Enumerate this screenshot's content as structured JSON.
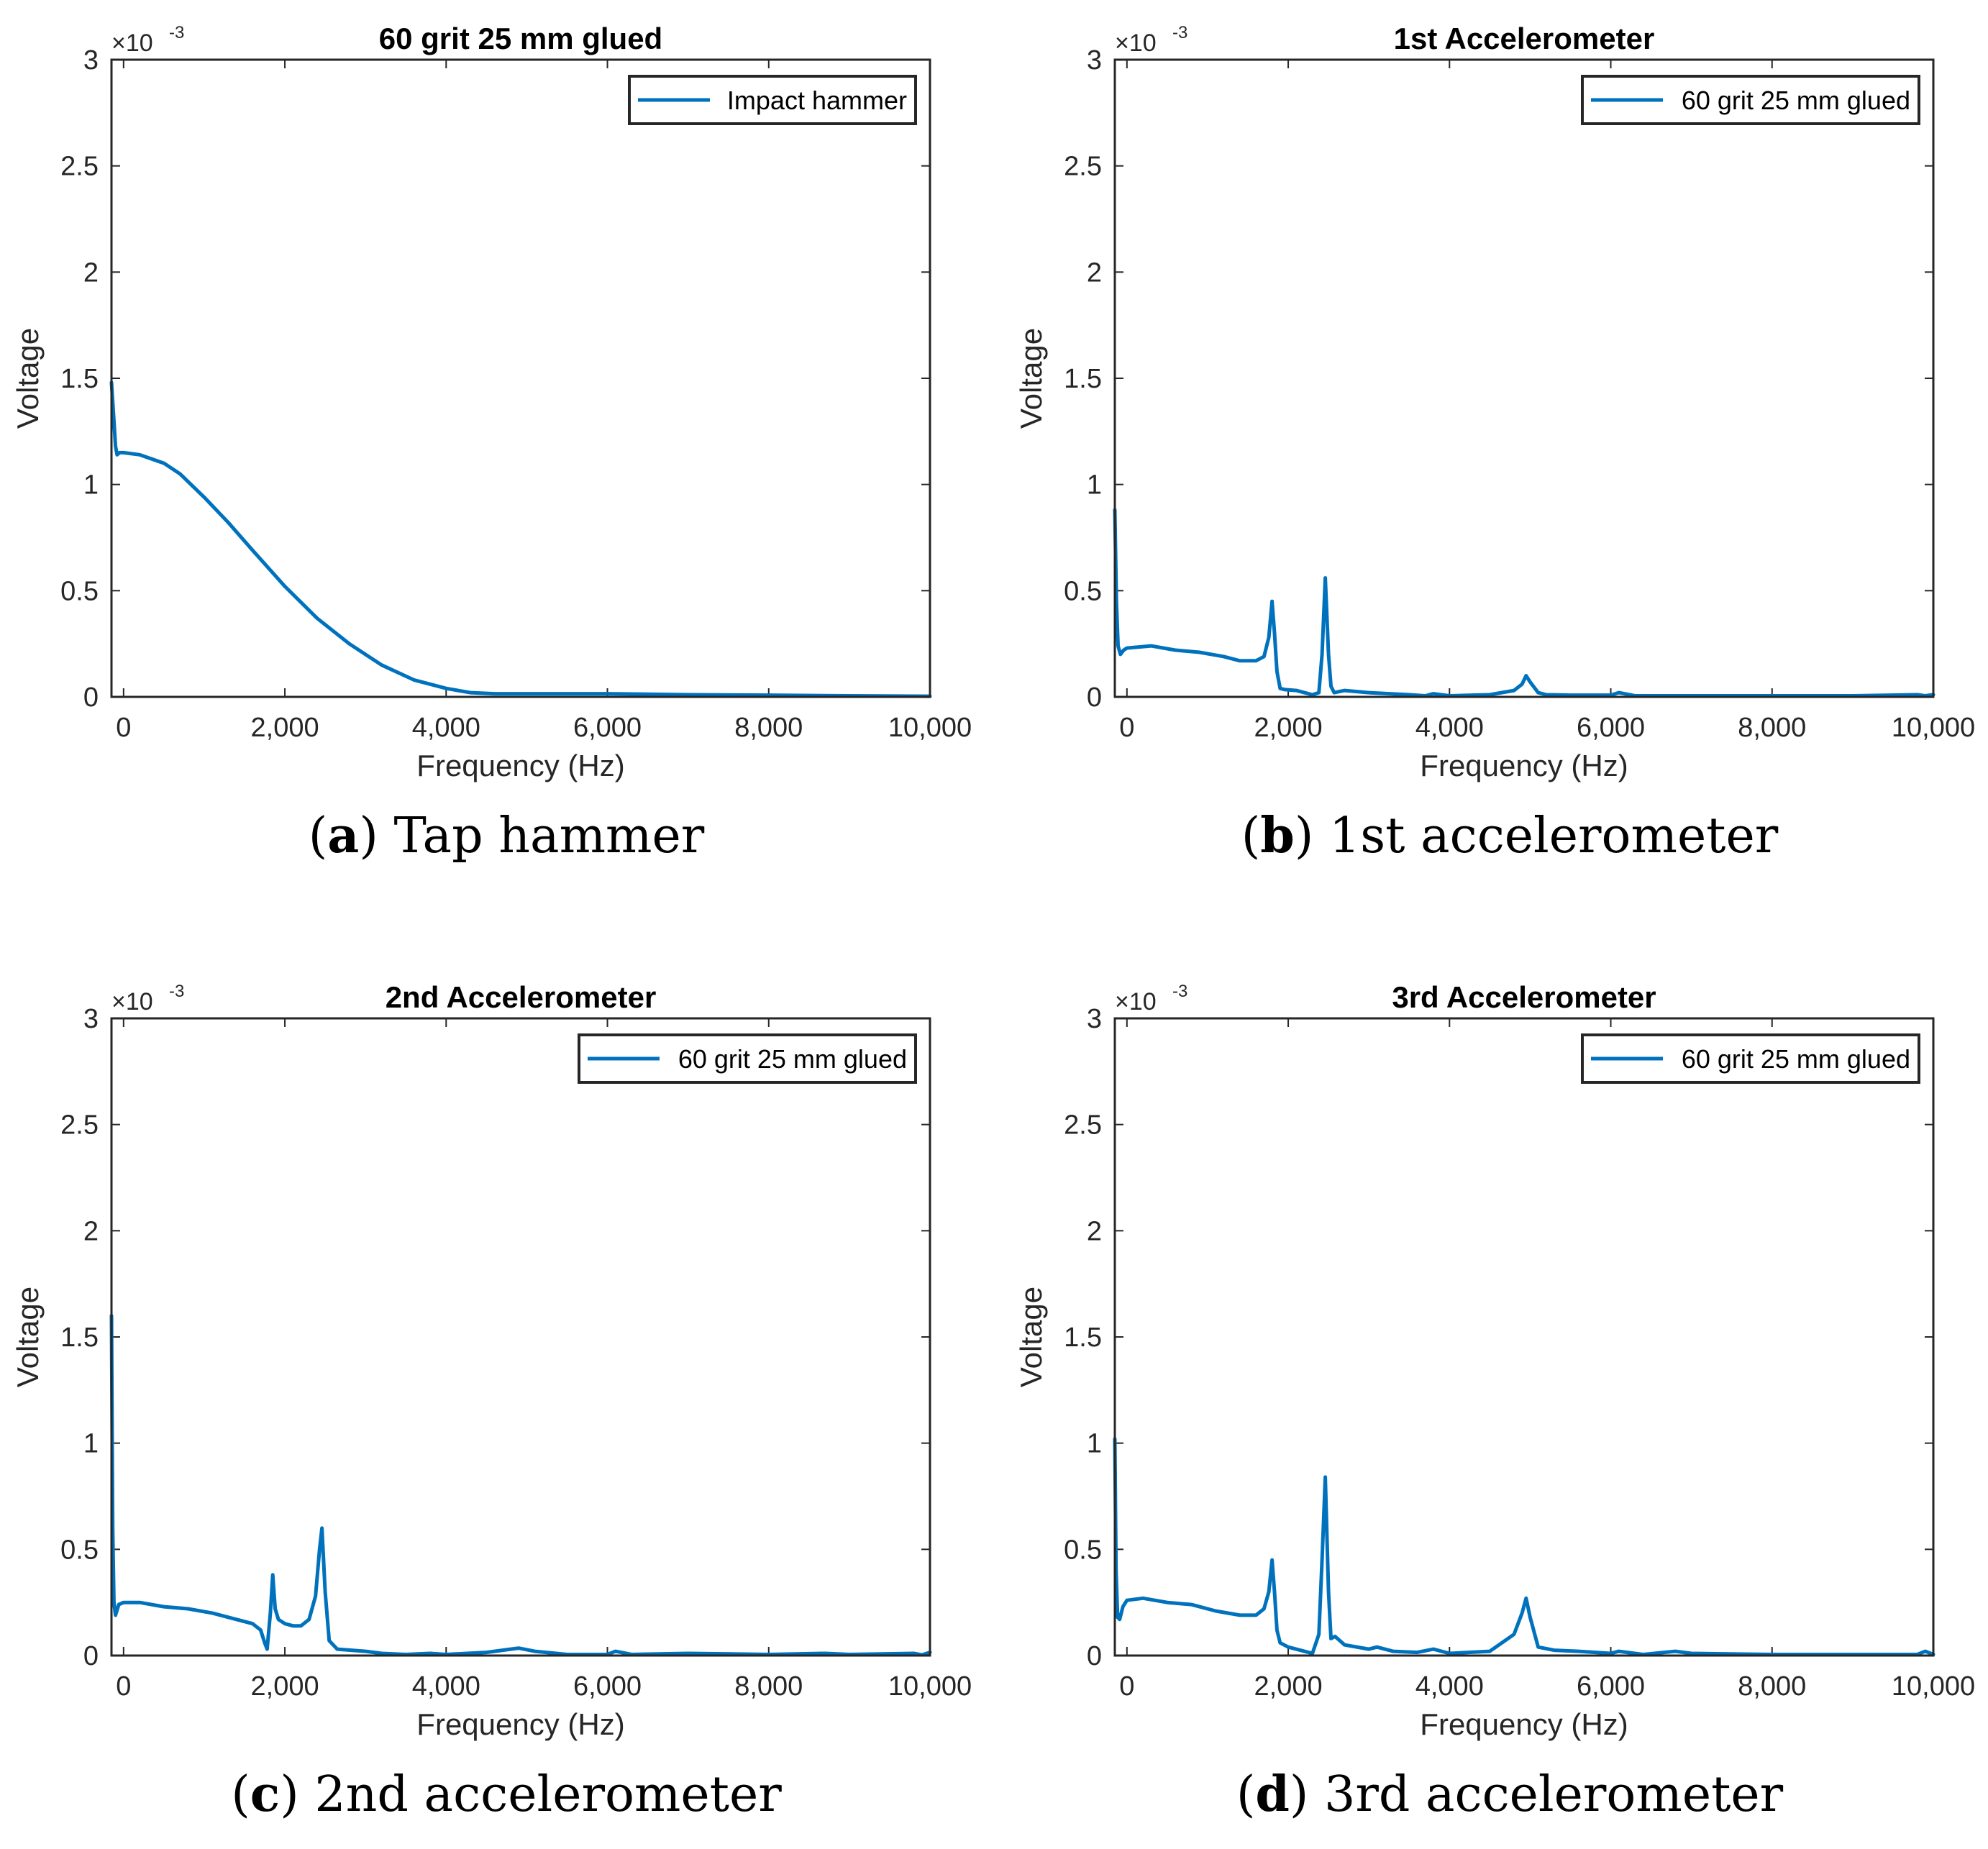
{
  "figure": {
    "accent_color": "#0072BD",
    "axis_color": "#262626"
  },
  "chart_data": [
    {
      "id": "a",
      "type": "line",
      "title": "60 grit 25 mm glued",
      "xlabel": "Frequency (Hz)",
      "ylabel": "Voltage",
      "multiplier": "×10",
      "multiplier_exp": "-3",
      "xlim": [
        -150,
        10000
      ],
      "ylim": [
        0,
        3
      ],
      "xticks": [
        0,
        2000,
        4000,
        6000,
        8000,
        10000
      ],
      "xtick_labels": [
        "0",
        "2,000",
        "4,000",
        "6,000",
        "8,000",
        "10,000"
      ],
      "yticks": [
        0,
        0.5,
        1,
        1.5,
        2,
        2.5,
        3
      ],
      "ytick_labels": [
        "0",
        "0.5",
        "1",
        "1.5",
        "2",
        "2.5",
        "3"
      ],
      "legend": "Impact hammer",
      "caption_letter": "a",
      "caption_text": "Tap hammer",
      "series": [
        {
          "name": "Impact hammer",
          "x": [
            -150,
            -120,
            -100,
            -80,
            -50,
            0,
            200,
            500,
            700,
            1000,
            1300,
            1600,
            2000,
            2400,
            2800,
            3200,
            3600,
            4000,
            4300,
            4600,
            5000,
            6000,
            7000,
            8000,
            9000,
            10000
          ],
          "y": [
            1.48,
            1.3,
            1.18,
            1.14,
            1.15,
            1.15,
            1.14,
            1.1,
            1.05,
            0.94,
            0.82,
            0.69,
            0.52,
            0.37,
            0.25,
            0.15,
            0.08,
            0.04,
            0.02,
            0.015,
            0.015,
            0.015,
            0.01,
            0.008,
            0.005,
            0.003
          ]
        }
      ]
    },
    {
      "id": "b",
      "type": "line",
      "title": "1st Accelerometer",
      "xlabel": "Frequency (Hz)",
      "ylabel": "Voltage",
      "multiplier": "×10",
      "multiplier_exp": "-3",
      "xlim": [
        -150,
        10000
      ],
      "ylim": [
        0,
        3
      ],
      "xticks": [
        0,
        2000,
        4000,
        6000,
        8000,
        10000
      ],
      "xtick_labels": [
        "0",
        "2,000",
        "4,000",
        "6,000",
        "8,000",
        "10,000"
      ],
      "yticks": [
        0,
        0.5,
        1,
        1.5,
        2,
        2.5,
        3
      ],
      "ytick_labels": [
        "0",
        "0.5",
        "1",
        "1.5",
        "2",
        "2.5",
        "3"
      ],
      "legend": "60 grit 25 mm glued",
      "caption_letter": "b",
      "caption_text": "1st accelerometer",
      "series": [
        {
          "name": "60 grit 25 mm glued",
          "x": [
            -150,
            -130,
            -110,
            -80,
            -40,
            0,
            300,
            600,
            900,
            1200,
            1400,
            1600,
            1700,
            1760,
            1800,
            1830,
            1860,
            1900,
            1950,
            2100,
            2200,
            2300,
            2380,
            2420,
            2460,
            2500,
            2530,
            2570,
            2700,
            3000,
            3500,
            3700,
            3800,
            4000,
            4500,
            4800,
            4900,
            4950,
            5000,
            5100,
            5200,
            5500,
            6000,
            6100,
            6300,
            7000,
            8000,
            9000,
            9800,
            9900,
            10000
          ],
          "y": [
            0.88,
            0.45,
            0.24,
            0.2,
            0.22,
            0.23,
            0.24,
            0.22,
            0.21,
            0.19,
            0.17,
            0.17,
            0.19,
            0.28,
            0.45,
            0.3,
            0.12,
            0.04,
            0.035,
            0.03,
            0.02,
            0.01,
            0.02,
            0.2,
            0.56,
            0.2,
            0.05,
            0.02,
            0.03,
            0.02,
            0.01,
            0.005,
            0.015,
            0.005,
            0.01,
            0.03,
            0.06,
            0.1,
            0.07,
            0.02,
            0.01,
            0.008,
            0.008,
            0.02,
            0.005,
            0.005,
            0.005,
            0.005,
            0.01,
            0.005,
            0.01
          ]
        }
      ]
    },
    {
      "id": "c",
      "type": "line",
      "title": "2nd Accelerometer",
      "xlabel": "Frequency (Hz)",
      "ylabel": "Voltage",
      "multiplier": "×10",
      "multiplier_exp": "-3",
      "xlim": [
        -150,
        10000
      ],
      "ylim": [
        0,
        3
      ],
      "xticks": [
        0,
        2000,
        4000,
        6000,
        8000,
        10000
      ],
      "xtick_labels": [
        "0",
        "2,000",
        "4,000",
        "6,000",
        "8,000",
        "10,000"
      ],
      "yticks": [
        0,
        0.5,
        1,
        1.5,
        2,
        2.5,
        3
      ],
      "ytick_labels": [
        "0",
        "0.5",
        "1",
        "1.5",
        "2",
        "2.5",
        "3"
      ],
      "legend": "60 grit 25 mm glued",
      "caption_letter": "c",
      "caption_text": "2nd accelerometer",
      "series": [
        {
          "name": "60 grit 25 mm glued",
          "x": [
            -150,
            -135,
            -120,
            -100,
            -60,
            0,
            200,
            500,
            800,
            1100,
            1400,
            1600,
            1700,
            1750,
            1780,
            1820,
            1850,
            1880,
            1920,
            2000,
            2100,
            2200,
            2300,
            2380,
            2430,
            2460,
            2500,
            2550,
            2650,
            3000,
            3200,
            3500,
            3800,
            4000,
            4500,
            4800,
            4900,
            5100,
            5500,
            6000,
            6100,
            6300,
            7000,
            8000,
            8700,
            9000,
            9800,
            9900,
            10000
          ],
          "y": [
            1.6,
            0.6,
            0.25,
            0.19,
            0.24,
            0.25,
            0.25,
            0.23,
            0.22,
            0.2,
            0.17,
            0.15,
            0.12,
            0.06,
            0.03,
            0.2,
            0.38,
            0.22,
            0.17,
            0.15,
            0.14,
            0.14,
            0.17,
            0.28,
            0.5,
            0.6,
            0.3,
            0.07,
            0.03,
            0.02,
            0.01,
            0.005,
            0.01,
            0.005,
            0.015,
            0.03,
            0.035,
            0.02,
            0.005,
            0.005,
            0.02,
            0.005,
            0.01,
            0.005,
            0.01,
            0.005,
            0.01,
            0.003,
            0.015
          ]
        }
      ]
    },
    {
      "id": "d",
      "type": "line",
      "title": "3rd Accelerometer",
      "xlabel": "Frequency (Hz)",
      "ylabel": "Voltage",
      "multiplier": "×10",
      "multiplier_exp": "-3",
      "xlim": [
        -150,
        10000
      ],
      "ylim": [
        0,
        3
      ],
      "xticks": [
        0,
        2000,
        4000,
        6000,
        8000,
        10000
      ],
      "xtick_labels": [
        "0",
        "2,000",
        "4,000",
        "6,000",
        "8,000",
        "10,000"
      ],
      "yticks": [
        0,
        0.5,
        1,
        1.5,
        2,
        2.5,
        3
      ],
      "ytick_labels": [
        "0",
        "0.5",
        "1",
        "1.5",
        "2",
        "2.5",
        "3"
      ],
      "legend": "60 grit 25 mm glued",
      "caption_letter": "d",
      "caption_text": "3rd accelerometer",
      "series": [
        {
          "name": "60 grit 25 mm glued",
          "x": [
            -150,
            -135,
            -115,
            -90,
            -50,
            0,
            200,
            500,
            800,
            1100,
            1400,
            1600,
            1700,
            1760,
            1800,
            1830,
            1860,
            1900,
            2000,
            2200,
            2300,
            2380,
            2420,
            2460,
            2500,
            2530,
            2580,
            2700,
            3000,
            3100,
            3300,
            3600,
            3800,
            4000,
            4500,
            4800,
            4900,
            4950,
            5000,
            5100,
            5300,
            5600,
            6000,
            6100,
            6400,
            6800,
            7000,
            8000,
            9000,
            9800,
            9900,
            10000
          ],
          "y": [
            1.02,
            0.4,
            0.18,
            0.17,
            0.23,
            0.26,
            0.27,
            0.25,
            0.24,
            0.21,
            0.19,
            0.19,
            0.22,
            0.3,
            0.45,
            0.3,
            0.12,
            0.06,
            0.04,
            0.02,
            0.01,
            0.1,
            0.45,
            0.84,
            0.3,
            0.08,
            0.09,
            0.05,
            0.03,
            0.04,
            0.02,
            0.015,
            0.03,
            0.01,
            0.02,
            0.1,
            0.2,
            0.27,
            0.18,
            0.04,
            0.025,
            0.02,
            0.01,
            0.02,
            0.005,
            0.02,
            0.01,
            0.005,
            0.005,
            0.005,
            0.02,
            0.005
          ]
        }
      ]
    }
  ]
}
